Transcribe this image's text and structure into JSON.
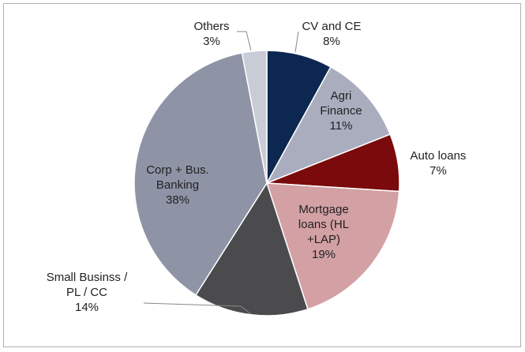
{
  "chart_data": {
    "type": "pie",
    "categories": [
      "CV and CE",
      "Agri Finance",
      "Auto loans",
      "Mortgage loans (HL +LAP)",
      "Small Businss / PL / CC",
      "Corp + Bus. Banking",
      "Others"
    ],
    "values": [
      8,
      11,
      7,
      19,
      14,
      38,
      3
    ],
    "value_labels": [
      "8%",
      "11%",
      "7%",
      "19%",
      "14%",
      "38%",
      "3%"
    ],
    "colors": [
      "#0c2850",
      "#a9adbe",
      "#7a0a0c",
      "#d3a0a4",
      "#4b4b4d",
      "#8f93a6",
      "#c9cbd6"
    ]
  }
}
